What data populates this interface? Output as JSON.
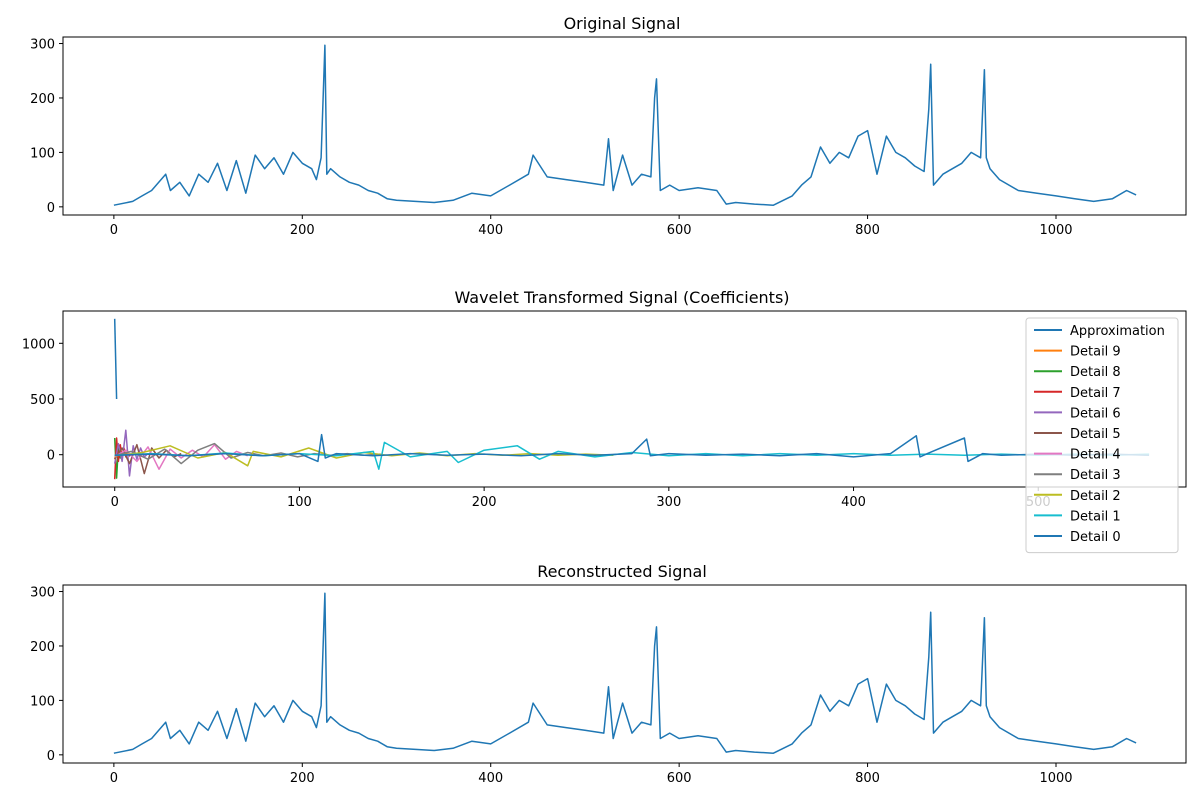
{
  "chart_data": [
    {
      "type": "line",
      "title": "Original Signal",
      "xlabel": "",
      "ylabel": "",
      "xlim": [
        -54,
        1138
      ],
      "ylim": [
        -15,
        312
      ],
      "xticks": [
        0,
        200,
        400,
        600,
        800,
        1000
      ],
      "yticks": [
        0,
        100,
        200,
        300
      ],
      "grid": false,
      "series": [
        {
          "color": "#1f77b4",
          "x": [
            0,
            20,
            30,
            40,
            55,
            60,
            70,
            80,
            90,
            100,
            110,
            120,
            130,
            140,
            150,
            160,
            170,
            180,
            190,
            200,
            210,
            215,
            220,
            224,
            226,
            230,
            240,
            250,
            260,
            270,
            280,
            290,
            300,
            320,
            340,
            360,
            380,
            400,
            420,
            440,
            445,
            460,
            480,
            500,
            520,
            525,
            530,
            540,
            550,
            560,
            570,
            574,
            576,
            580,
            590,
            600,
            620,
            640,
            650,
            660,
            680,
            700,
            720,
            730,
            740,
            750,
            760,
            770,
            780,
            790,
            800,
            810,
            820,
            830,
            840,
            850,
            860,
            865,
            867,
            870,
            880,
            890,
            900,
            910,
            920,
            924,
            926,
            930,
            940,
            960,
            980,
            1000,
            1020,
            1040,
            1060,
            1075,
            1085
          ],
          "values": [
            3,
            10,
            20,
            30,
            60,
            30,
            45,
            20,
            60,
            45,
            80,
            30,
            85,
            25,
            95,
            70,
            90,
            60,
            100,
            80,
            70,
            50,
            90,
            297,
            60,
            70,
            55,
            45,
            40,
            30,
            25,
            15,
            12,
            10,
            8,
            12,
            25,
            20,
            40,
            60,
            95,
            55,
            50,
            45,
            40,
            125,
            30,
            95,
            40,
            60,
            55,
            200,
            235,
            30,
            40,
            30,
            35,
            30,
            5,
            8,
            5,
            3,
            20,
            40,
            55,
            110,
            80,
            100,
            90,
            130,
            140,
            60,
            130,
            100,
            90,
            75,
            65,
            180,
            262,
            40,
            60,
            70,
            80,
            100,
            90,
            252,
            90,
            70,
            50,
            30,
            25,
            20,
            15,
            10,
            15,
            30,
            22
          ]
        }
      ]
    },
    {
      "type": "line",
      "title": "Wavelet Transformed Signal (Coefficients)",
      "xlabel": "",
      "ylabel": "",
      "xlim": [
        -28,
        580
      ],
      "ylim": [
        -290,
        1290
      ],
      "xticks": [
        0,
        100,
        200,
        300,
        400,
        500
      ],
      "yticks": [
        0,
        500,
        1000
      ],
      "grid": false,
      "legend": "top-right",
      "series": [
        {
          "name": "Approximation",
          "color": "#1f77b4",
          "x": [
            0,
            1
          ],
          "values": [
            1220,
            500
          ]
        },
        {
          "name": "Detail 9",
          "color": "#ff7f0e",
          "x": [
            0,
            1,
            2,
            3
          ],
          "values": [
            -40,
            30,
            -25,
            10
          ]
        },
        {
          "name": "Detail 8",
          "color": "#2ca02c",
          "x": [
            0,
            1,
            2,
            3,
            4
          ],
          "values": [
            150,
            -210,
            80,
            -30,
            20
          ]
        },
        {
          "name": "Detail 7",
          "color": "#d62728",
          "x": [
            0,
            1,
            2,
            3,
            4,
            5,
            6,
            7,
            8,
            9
          ],
          "values": [
            -220,
            150,
            -60,
            90,
            -40,
            60,
            -20,
            30,
            -10,
            10
          ]
        },
        {
          "name": "Detail 6",
          "color": "#9467bd",
          "x": [
            0,
            2,
            4,
            6,
            8,
            10,
            12,
            14,
            16,
            18
          ],
          "values": [
            -80,
            100,
            -60,
            220,
            -190,
            80,
            -40,
            60,
            -20,
            10
          ]
        },
        {
          "name": "Detail 5",
          "color": "#8c564b",
          "x": [
            0,
            4,
            8,
            12,
            16,
            20,
            24,
            28,
            32,
            36
          ],
          "values": [
            -40,
            60,
            -80,
            90,
            -170,
            60,
            -30,
            40,
            -20,
            10
          ]
        },
        {
          "name": "Detail 4",
          "color": "#e377c2",
          "x": [
            0,
            6,
            12,
            18,
            24,
            30,
            36,
            42,
            48,
            54,
            60,
            66,
            72
          ],
          "values": [
            -20,
            40,
            -60,
            70,
            -130,
            50,
            -30,
            40,
            -20,
            90,
            -40,
            30,
            -10
          ]
        },
        {
          "name": "Detail 3",
          "color": "#7f7f7f",
          "x": [
            0,
            9,
            18,
            27,
            36,
            45,
            54,
            63,
            72,
            81,
            90,
            99,
            108,
            117,
            126,
            135,
            144
          ],
          "values": [
            -10,
            30,
            -40,
            50,
            -80,
            40,
            100,
            -30,
            20,
            -10,
            15,
            -20,
            10,
            -5,
            10,
            -5,
            5
          ]
        },
        {
          "name": "Detail 2",
          "color": "#bcbd22",
          "x": [
            0,
            15,
            30,
            45,
            60,
            72,
            75,
            90,
            105,
            120,
            135,
            150,
            165,
            180,
            195,
            210,
            225,
            240,
            255,
            270
          ],
          "values": [
            -10,
            20,
            80,
            -30,
            20,
            -100,
            30,
            -20,
            60,
            -30,
            20,
            -10,
            15,
            -10,
            10,
            -5,
            10,
            -5,
            5,
            -5
          ]
        },
        {
          "name": "Detail 1",
          "color": "#17becf",
          "x": [
            0,
            20,
            40,
            60,
            80,
            100,
            120,
            140,
            143,
            146,
            160,
            180,
            186,
            200,
            218,
            230,
            240,
            260,
            280,
            300,
            320,
            340,
            360,
            380,
            400,
            420,
            440,
            460,
            480,
            500,
            520,
            540,
            560
          ],
          "values": [
            -5,
            10,
            -10,
            15,
            -10,
            10,
            -10,
            30,
            -130,
            110,
            -20,
            30,
            -70,
            40,
            80,
            -40,
            30,
            -20,
            20,
            -10,
            10,
            -10,
            10,
            -5,
            10,
            -5,
            5,
            -5,
            5,
            -5,
            5,
            -5,
            5
          ]
        },
        {
          "name": "Detail 0",
          "color": "#1f77b4",
          "x": [
            0,
            20,
            40,
            60,
            80,
            100,
            110,
            112,
            114,
            120,
            140,
            160,
            180,
            200,
            220,
            240,
            260,
            280,
            288,
            290,
            300,
            320,
            340,
            360,
            380,
            400,
            420,
            434,
            436,
            440,
            460,
            462,
            470,
            480,
            500,
            520,
            540,
            560
          ],
          "values": [
            -5,
            5,
            -10,
            10,
            -10,
            10,
            -60,
            180,
            -30,
            10,
            -10,
            10,
            -5,
            5,
            -10,
            10,
            -5,
            10,
            140,
            -10,
            10,
            -5,
            5,
            -10,
            10,
            -20,
            10,
            170,
            -20,
            10,
            150,
            -60,
            10,
            -5,
            5,
            -5,
            5,
            -5
          ]
        }
      ]
    },
    {
      "type": "line",
      "title": "Reconstructed Signal",
      "xlabel": "",
      "ylabel": "",
      "xlim": [
        -54,
        1138
      ],
      "ylim": [
        -15,
        312
      ],
      "xticks": [
        0,
        200,
        400,
        600,
        800,
        1000
      ],
      "yticks": [
        0,
        100,
        200,
        300
      ],
      "grid": false,
      "series": [
        {
          "color": "#1f77b4",
          "x": [
            0,
            20,
            30,
            40,
            55,
            60,
            70,
            80,
            90,
            100,
            110,
            120,
            130,
            140,
            150,
            160,
            170,
            180,
            190,
            200,
            210,
            215,
            220,
            224,
            226,
            230,
            240,
            250,
            260,
            270,
            280,
            290,
            300,
            320,
            340,
            360,
            380,
            400,
            420,
            440,
            445,
            460,
            480,
            500,
            520,
            525,
            530,
            540,
            550,
            560,
            570,
            574,
            576,
            580,
            590,
            600,
            620,
            640,
            650,
            660,
            680,
            700,
            720,
            730,
            740,
            750,
            760,
            770,
            780,
            790,
            800,
            810,
            820,
            830,
            840,
            850,
            860,
            865,
            867,
            870,
            880,
            890,
            900,
            910,
            920,
            924,
            926,
            930,
            940,
            960,
            980,
            1000,
            1020,
            1040,
            1060,
            1075,
            1085
          ],
          "values": [
            3,
            10,
            20,
            30,
            60,
            30,
            45,
            20,
            60,
            45,
            80,
            30,
            85,
            25,
            95,
            70,
            90,
            60,
            100,
            80,
            70,
            50,
            90,
            297,
            60,
            70,
            55,
            45,
            40,
            30,
            25,
            15,
            12,
            10,
            8,
            12,
            25,
            20,
            40,
            60,
            95,
            55,
            50,
            45,
            40,
            125,
            30,
            95,
            40,
            60,
            55,
            200,
            235,
            30,
            40,
            30,
            35,
            30,
            5,
            8,
            5,
            3,
            20,
            40,
            55,
            110,
            80,
            100,
            90,
            130,
            140,
            60,
            130,
            100,
            90,
            75,
            65,
            180,
            262,
            40,
            60,
            70,
            80,
            100,
            90,
            252,
            90,
            70,
            50,
            30,
            25,
            20,
            15,
            10,
            15,
            30,
            22
          ]
        }
      ]
    }
  ]
}
